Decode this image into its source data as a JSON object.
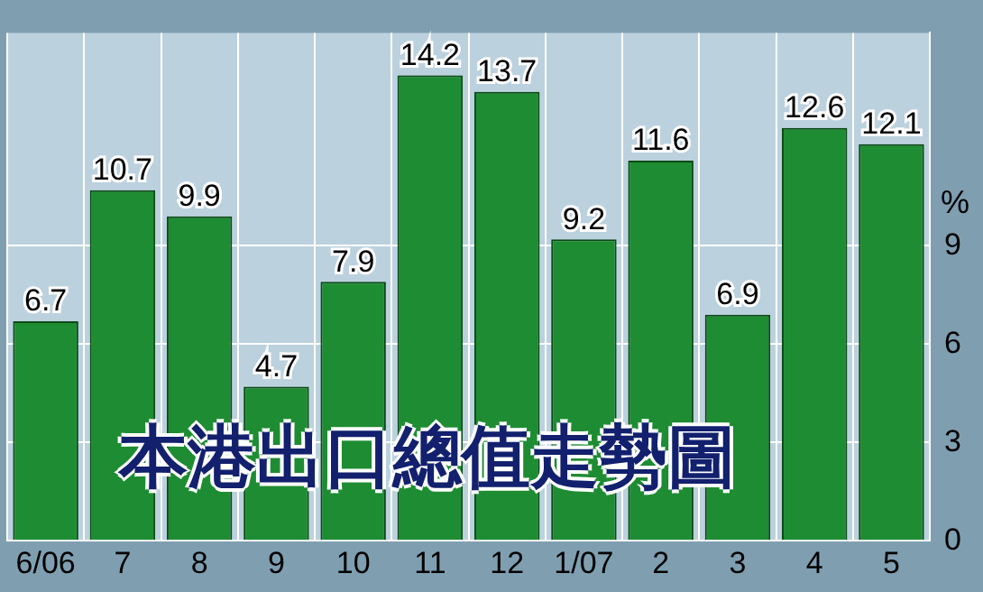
{
  "chart_data": {
    "type": "bar",
    "title": "本港出口總值走勢圖",
    "ylabel": "%",
    "categories": [
      "6/06",
      "7",
      "8",
      "9",
      "10",
      "11",
      "12",
      "1/07",
      "2",
      "3",
      "4",
      "5"
    ],
    "values": [
      6.7,
      10.7,
      9.9,
      4.7,
      7.9,
      14.2,
      13.7,
      9.2,
      11.6,
      6.9,
      12.6,
      12.1
    ],
    "color": "#1e8c32",
    "ylim": [
      0,
      15.5
    ],
    "yticks": [
      0,
      3,
      6,
      9
    ],
    "grid": true,
    "data_labels": true
  }
}
